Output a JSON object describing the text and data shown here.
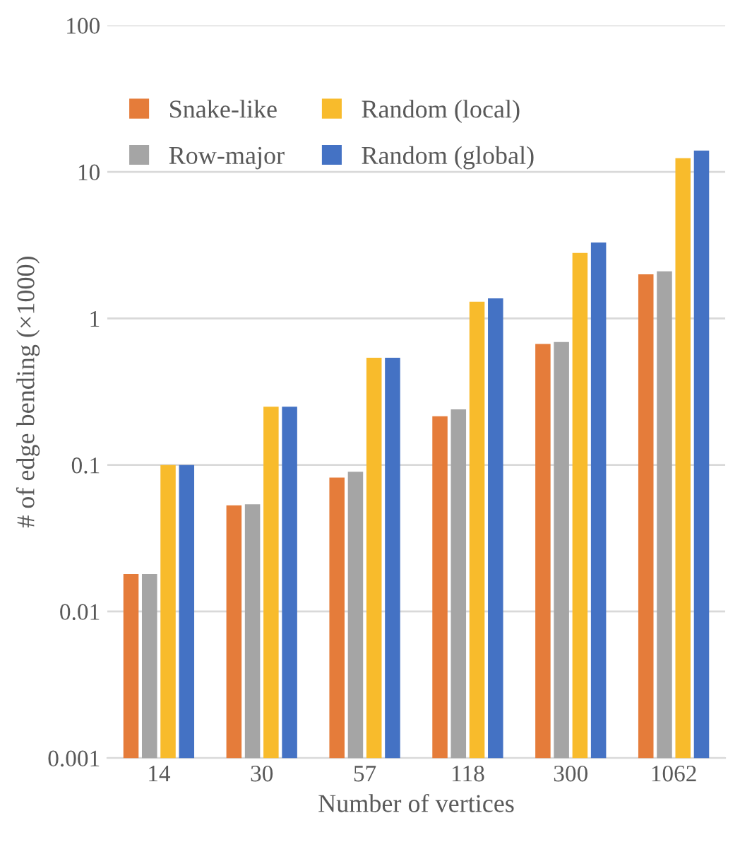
{
  "chart_data": {
    "type": "bar",
    "xlabel": "Number of vertices",
    "ylabel": "# of edge bending (×1000)",
    "categories": [
      "14",
      "30",
      "57",
      "118",
      "300",
      "1062"
    ],
    "series": [
      {
        "name": "Snake-like",
        "color": "#e57c3a",
        "values": [
          0.018,
          0.053,
          0.082,
          0.215,
          0.67,
          2.0
        ]
      },
      {
        "name": "Row-major",
        "color": "#a5a5a5",
        "values": [
          0.018,
          0.054,
          0.09,
          0.24,
          0.69,
          2.1
        ]
      },
      {
        "name": "Random (local)",
        "color": "#f8bb2c",
        "values": [
          0.1,
          0.25,
          0.54,
          1.3,
          2.8,
          12.4
        ]
      },
      {
        "name": "Random (global)",
        "color": "#4472c4",
        "values": [
          0.1,
          0.25,
          0.54,
          1.37,
          3.3,
          14.0
        ]
      }
    ],
    "log": true,
    "ylim": [
      0.001,
      100
    ],
    "yticks": [
      0.001,
      0.01,
      0.1,
      1,
      10,
      100
    ],
    "grid": "y",
    "legend": "top left"
  }
}
